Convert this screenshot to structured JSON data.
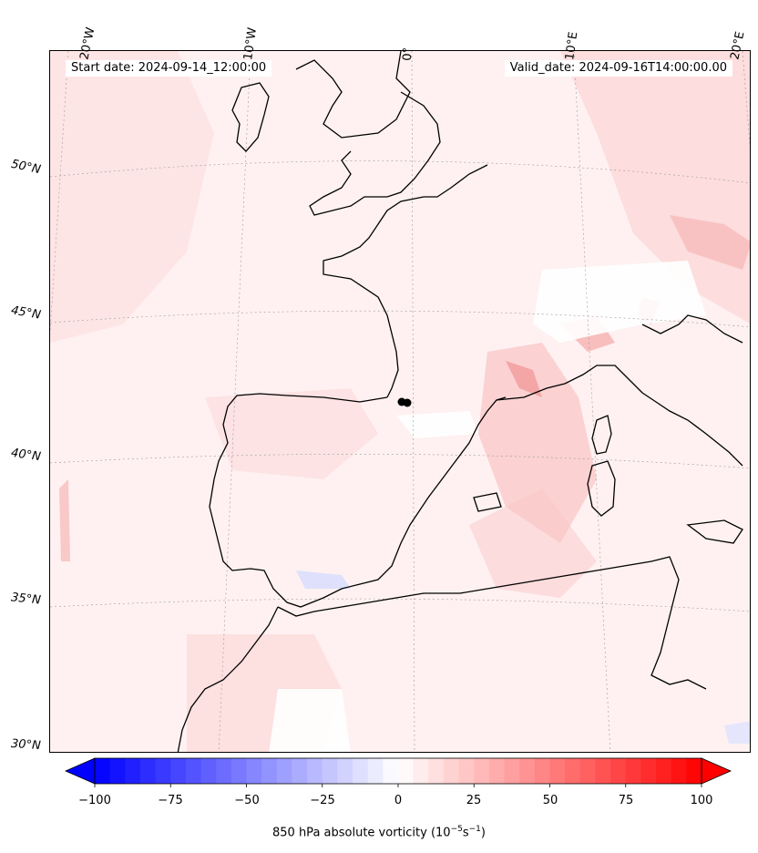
{
  "header": {
    "start_date": "Start date: 2024-09-14_12:00:00",
    "valid_date": "Valid_date: 2024-09-16T14:00:00.00"
  },
  "longitude_ticks": [
    "20°W",
    "10°W",
    "0°",
    "10°E",
    "20°E"
  ],
  "latitude_ticks": [
    "50°N",
    "45°N",
    "40°N",
    "35°N",
    "30°N"
  ],
  "colorbar": {
    "ticks": [
      "−100",
      "−75",
      "−50",
      "−25",
      "0",
      "25",
      "50",
      "75",
      "100"
    ],
    "min": -100,
    "max": 100,
    "levels": 40,
    "low_color": "#0000ff",
    "mid_color": "#ffffff",
    "high_color": "#ff0000",
    "label_prefix": "850 hPa absolute vorticity (10",
    "label_exp1": "−5",
    "label_mid": "s",
    "label_exp2": "−1",
    "label_suffix": ")"
  },
  "map": {
    "region": "Western Europe, Iberia, Western Mediterranean, North Africa",
    "field_colormap": "bwr",
    "coastline_color": "#000000",
    "gridline_color": "#999999",
    "marker_color": "#000000"
  }
}
